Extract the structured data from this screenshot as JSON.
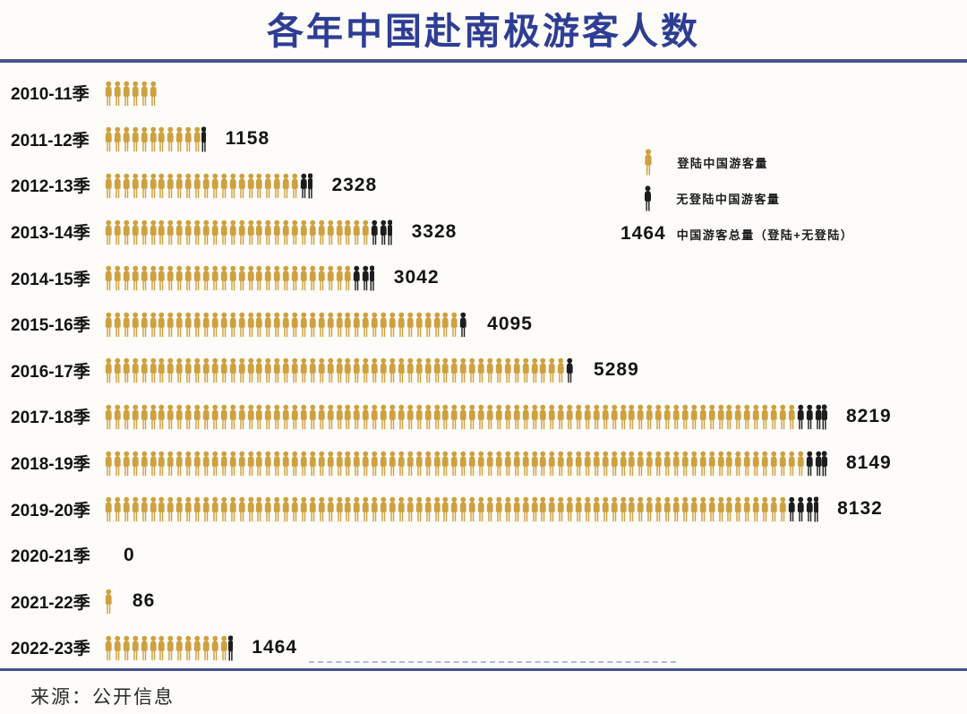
{
  "title": "各年中国赴南极游客人数",
  "source": "来源：公开信息",
  "colors": {
    "title_navy": "#2e3d94",
    "rule_blue": "#4a5590",
    "landed_gold": "#CFA03F",
    "not_landed_black": "#1d1d1d"
  },
  "legend": {
    "landed_label": "登陆中国游客量",
    "not_landed_label": "无登陆中国游客量",
    "total_example_value": "1464",
    "total_label": "中国游客总量（登陆+无登陆）"
  },
  "chart_data": {
    "type": "bar",
    "subtype": "pictogram",
    "title": "各年中国赴南极游客人数",
    "unit_per_icon": 100,
    "legend_entries": [
      "登陆中国游客量",
      "无登陆中国游客量",
      "中国游客总量（登陆+无登陆）"
    ],
    "categories": [
      "2010-11季",
      "2011-12季",
      "2012-13季",
      "2013-14季",
      "2014-15季",
      "2015-16季",
      "2016-17季",
      "2017-18季",
      "2018-19季",
      "2019-20季",
      "2020-21季",
      "2021-22季",
      "2022-23季"
    ],
    "values": [
      null,
      1158,
      2328,
      3328,
      3042,
      4095,
      5289,
      8219,
      8149,
      8132,
      0,
      86,
      1464
    ],
    "rows": [
      {
        "label": "2010-11季",
        "value": "",
        "gold": 6,
        "black": 0,
        "half": false
      },
      {
        "label": "2011-12季",
        "value": "1158",
        "gold": 11,
        "black": 0,
        "half": true
      },
      {
        "label": "2012-13季",
        "value": "2328",
        "gold": 22,
        "black": 1,
        "half": true
      },
      {
        "label": "2013-14季",
        "value": "3328",
        "gold": 30,
        "black": 2,
        "half": true
      },
      {
        "label": "2014-15季",
        "value": "3042",
        "gold": 28,
        "black": 2,
        "half": true
      },
      {
        "label": "2015-16季",
        "value": "4095",
        "gold": 40,
        "black": 1,
        "half": false
      },
      {
        "label": "2016-17季",
        "value": "5289",
        "gold": 52,
        "black": 1,
        "half": false
      },
      {
        "label": "2017-18季",
        "value": "8219",
        "gold": 78,
        "black": 3,
        "half": true
      },
      {
        "label": "2018-19季",
        "value": "8149",
        "gold": 79,
        "black": 2,
        "half": true
      },
      {
        "label": "2019-20季",
        "value": "8132",
        "gold": 77,
        "black": 3,
        "half": true
      },
      {
        "label": "2020-21季",
        "value": "0",
        "gold": 0,
        "black": 0,
        "half": false
      },
      {
        "label": "2021-22季",
        "value": "86",
        "gold": 1,
        "black": 0,
        "half": false
      },
      {
        "label": "2022-23季",
        "value": "1464",
        "gold": 14,
        "black": 0,
        "half": true
      }
    ]
  }
}
